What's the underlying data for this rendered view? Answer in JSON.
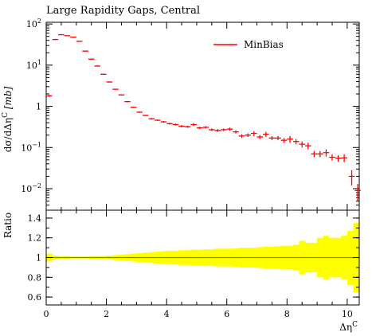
{
  "title": "Large Rapidity Gaps, Central",
  "colors": {
    "series": "#ff0000",
    "band": "#ffff00",
    "ratio_line": "#808000"
  },
  "chart_data": [
    {
      "type": "scatter",
      "title": "Large Rapidity Gaps, Central",
      "ylabel": "dσ/dΔη^C [mb]",
      "ylabel_main": "dσ/dΔη",
      "ylabel_sup": "C",
      "ylabel_unit": "[mb]",
      "xlim": [
        0,
        10.4
      ],
      "ylim": [
        0.003,
        110
      ],
      "yscale": "log",
      "legend": {
        "entries": [
          "MinBias"
        ],
        "position": "top-right"
      },
      "series": [
        {
          "name": "MinBias",
          "x": [
            0.1,
            0.3,
            0.5,
            0.7,
            0.9,
            1.1,
            1.3,
            1.5,
            1.7,
            1.9,
            2.1,
            2.3,
            2.5,
            2.7,
            2.9,
            3.1,
            3.3,
            3.5,
            3.7,
            3.9,
            4.1,
            4.3,
            4.5,
            4.7,
            4.9,
            5.1,
            5.3,
            5.5,
            5.7,
            5.9,
            6.1,
            6.3,
            6.5,
            6.7,
            6.9,
            7.1,
            7.3,
            7.5,
            7.7,
            7.9,
            8.1,
            8.3,
            8.5,
            8.7,
            8.9,
            9.1,
            9.3,
            9.5,
            9.7,
            9.9,
            10.1,
            10.3
          ],
          "y": [
            1.8,
            42,
            55,
            52,
            48,
            38,
            22,
            14,
            9.5,
            6,
            3.9,
            2.6,
            1.9,
            1.3,
            0.95,
            0.72,
            0.6,
            0.5,
            0.46,
            0.42,
            0.38,
            0.36,
            0.33,
            0.32,
            0.36,
            0.3,
            0.31,
            0.27,
            0.26,
            0.27,
            0.28,
            0.24,
            0.19,
            0.2,
            0.22,
            0.18,
            0.21,
            0.17,
            0.17,
            0.15,
            0.16,
            0.14,
            0.12,
            0.11,
            0.07,
            0.07,
            0.075,
            0.058,
            0.055,
            0.056,
            0.045,
            0.038
          ],
          "yerr": [
            0.1,
            1.5,
            1.5,
            1.5,
            1.2,
            1.0,
            0.6,
            0.4,
            0.3,
            0.2,
            0.12,
            0.08,
            0.06,
            0.04,
            0.03,
            0.025,
            0.02,
            0.02,
            0.02,
            0.02,
            0.02,
            0.02,
            0.02,
            0.02,
            0.03,
            0.02,
            0.02,
            0.02,
            0.02,
            0.02,
            0.025,
            0.02,
            0.02,
            0.02,
            0.03,
            0.02,
            0.03,
            0.02,
            0.02,
            0.02,
            0.03,
            0.02,
            0.02,
            0.02,
            0.012,
            0.012,
            0.015,
            0.01,
            0.01,
            0.012,
            0.012,
            0.01
          ]
        }
      ],
      "point_extras": {
        "x": [
          10.15,
          10.35
        ],
        "y": [
          0.02,
          0.009
        ],
        "yerr": [
          0.008,
          0.004
        ]
      },
      "xticks": [
        0,
        2,
        4,
        6,
        8,
        10
      ],
      "yticks": [
        {
          "value": 100,
          "base": "10",
          "exp": "2"
        },
        {
          "value": 10,
          "base": "10",
          "exp": "1"
        },
        {
          "value": 1,
          "base": "1",
          "exp": ""
        },
        {
          "value": 0.1,
          "base": "10",
          "exp": "−1"
        },
        {
          "value": 0.01,
          "base": "10",
          "exp": "−2"
        }
      ]
    },
    {
      "type": "area",
      "ylabel": "Ratio",
      "xlabel": "Δη^C",
      "xlabel_main": "Δη",
      "xlabel_sup": "C",
      "xlim": [
        0,
        10.4
      ],
      "ylim": [
        0.52,
        1.48
      ],
      "yticks": [
        0.6,
        0.8,
        1,
        1.2,
        1.4
      ],
      "ytick_labels": [
        "0.6",
        "0.8",
        "1",
        "1.2",
        "1.4"
      ],
      "xticks": [
        0,
        2,
        4,
        6,
        8,
        10
      ],
      "xtick_labels": [
        "0",
        "2",
        "4",
        "6",
        "8",
        "10"
      ],
      "band": {
        "x": [
          0,
          0.2,
          0.4,
          0.6,
          0.8,
          1.0,
          1.2,
          1.4,
          1.6,
          1.8,
          2.0,
          2.2,
          2.4,
          2.6,
          2.8,
          3.0,
          3.2,
          3.4,
          3.6,
          3.8,
          4.0,
          4.2,
          4.4,
          4.6,
          4.8,
          5.0,
          5.2,
          5.4,
          5.6,
          5.8,
          6.0,
          6.2,
          6.4,
          6.6,
          6.8,
          7.0,
          7.2,
          7.4,
          7.6,
          7.8,
          8.0,
          8.2,
          8.4,
          8.6,
          8.8,
          9.0,
          9.2,
          9.4,
          9.6,
          9.8,
          10.0,
          10.2,
          10.4
        ],
        "upper": [
          1.04,
          1.02,
          1.015,
          1.012,
          1.01,
          1.01,
          1.01,
          1.012,
          1.014,
          1.016,
          1.02,
          1.025,
          1.03,
          1.035,
          1.04,
          1.045,
          1.05,
          1.055,
          1.06,
          1.065,
          1.07,
          1.07,
          1.075,
          1.075,
          1.08,
          1.08,
          1.085,
          1.085,
          1.09,
          1.09,
          1.09,
          1.095,
          1.1,
          1.1,
          1.1,
          1.105,
          1.11,
          1.11,
          1.115,
          1.12,
          1.12,
          1.13,
          1.17,
          1.15,
          1.15,
          1.2,
          1.22,
          1.2,
          1.2,
          1.22,
          1.27,
          1.35,
          1.45
        ],
        "lower": [
          0.96,
          0.98,
          0.985,
          0.988,
          0.99,
          0.99,
          0.99,
          0.988,
          0.986,
          0.984,
          0.98,
          0.975,
          0.97,
          0.965,
          0.96,
          0.955,
          0.95,
          0.945,
          0.94,
          0.935,
          0.93,
          0.93,
          0.925,
          0.925,
          0.92,
          0.92,
          0.915,
          0.915,
          0.91,
          0.91,
          0.91,
          0.905,
          0.9,
          0.9,
          0.9,
          0.895,
          0.89,
          0.89,
          0.885,
          0.88,
          0.88,
          0.87,
          0.83,
          0.85,
          0.85,
          0.8,
          0.78,
          0.8,
          0.8,
          0.78,
          0.72,
          0.65,
          0.55
        ]
      },
      "reference_line": 1.0
    }
  ]
}
